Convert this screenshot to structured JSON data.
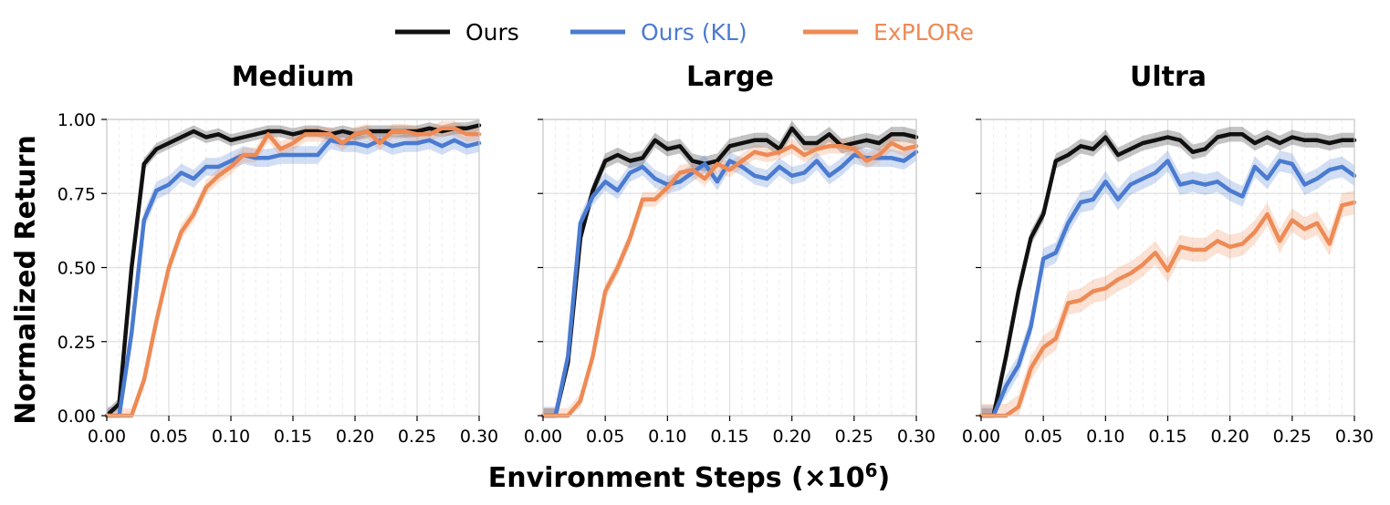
{
  "legend": [
    {
      "label": "Ours",
      "color": "#111111"
    },
    {
      "label": "Ours (KL)",
      "color": "#4a7bd1"
    },
    {
      "label": "ExPLORe",
      "color": "#ee8a55"
    }
  ],
  "figure": {
    "xlabel": "Environment Steps (×10",
    "xlabel_exp": "6",
    "xlabel_close": ")",
    "ylabel": "Normalized Return"
  },
  "chart_data": [
    {
      "type": "line",
      "title": "Medium",
      "xlim": [
        0,
        0.3
      ],
      "ylim": [
        0,
        1.0
      ],
      "xticks": [
        "0.00",
        "0.05",
        "0.10",
        "0.15",
        "0.20",
        "0.25",
        "0.30"
      ],
      "yticks": [
        "0.00",
        "0.25",
        "0.50",
        "0.75",
        "1.00"
      ],
      "grid": true,
      "x": [
        0,
        0.01,
        0.02,
        0.03,
        0.04,
        0.05,
        0.06,
        0.07,
        0.08,
        0.09,
        0.1,
        0.11,
        0.12,
        0.13,
        0.14,
        0.15,
        0.16,
        0.17,
        0.18,
        0.19,
        0.2,
        0.21,
        0.22,
        0.23,
        0.24,
        0.25,
        0.26,
        0.27,
        0.28,
        0.29,
        0.3
      ],
      "series": [
        {
          "name": "Ours",
          "color": "#111111",
          "band": 0.02,
          "values": [
            0.0,
            0.04,
            0.5,
            0.85,
            0.9,
            0.92,
            0.94,
            0.96,
            0.94,
            0.95,
            0.93,
            0.94,
            0.95,
            0.96,
            0.96,
            0.95,
            0.96,
            0.96,
            0.95,
            0.96,
            0.95,
            0.96,
            0.96,
            0.96,
            0.96,
            0.96,
            0.97,
            0.96,
            0.97,
            0.97,
            0.98
          ]
        },
        {
          "name": "Ours (KL)",
          "color": "#4a7bd1",
          "band": 0.03,
          "values": [
            0.0,
            0.0,
            0.28,
            0.66,
            0.76,
            0.78,
            0.82,
            0.8,
            0.84,
            0.84,
            0.86,
            0.88,
            0.87,
            0.87,
            0.88,
            0.88,
            0.88,
            0.88,
            0.93,
            0.92,
            0.92,
            0.91,
            0.93,
            0.91,
            0.92,
            0.92,
            0.93,
            0.91,
            0.93,
            0.91,
            0.92
          ]
        },
        {
          "name": "ExPLORe",
          "color": "#ee8a55",
          "band": 0.025,
          "values": [
            0.0,
            0.0,
            0.0,
            0.12,
            0.32,
            0.5,
            0.62,
            0.68,
            0.77,
            0.81,
            0.84,
            0.88,
            0.88,
            0.95,
            0.9,
            0.92,
            0.95,
            0.95,
            0.95,
            0.92,
            0.95,
            0.96,
            0.92,
            0.96,
            0.96,
            0.95,
            0.95,
            0.97,
            0.97,
            0.95,
            0.95
          ]
        }
      ]
    },
    {
      "type": "line",
      "title": "Large",
      "xlim": [
        0,
        0.3
      ],
      "ylim": [
        0,
        1.0
      ],
      "xticks": [
        "0.00",
        "0.05",
        "0.10",
        "0.15",
        "0.20",
        "0.25",
        "0.30"
      ],
      "yticks": [
        "0.00",
        "0.25",
        "0.50",
        "0.75",
        "1.00"
      ],
      "grid": true,
      "x": [
        0,
        0.01,
        0.02,
        0.03,
        0.04,
        0.05,
        0.06,
        0.07,
        0.08,
        0.09,
        0.1,
        0.11,
        0.12,
        0.13,
        0.14,
        0.15,
        0.16,
        0.17,
        0.18,
        0.19,
        0.2,
        0.21,
        0.22,
        0.23,
        0.24,
        0.25,
        0.26,
        0.27,
        0.28,
        0.29,
        0.3
      ],
      "series": [
        {
          "name": "Ours",
          "color": "#111111",
          "band": 0.025,
          "values": [
            0.0,
            0.0,
            0.18,
            0.6,
            0.76,
            0.86,
            0.88,
            0.86,
            0.87,
            0.93,
            0.9,
            0.91,
            0.86,
            0.85,
            0.86,
            0.91,
            0.92,
            0.93,
            0.93,
            0.9,
            0.97,
            0.92,
            0.92,
            0.95,
            0.91,
            0.92,
            0.93,
            0.92,
            0.95,
            0.95,
            0.94
          ]
        },
        {
          "name": "Ours (KL)",
          "color": "#4a7bd1",
          "band": 0.03,
          "values": [
            0.0,
            0.0,
            0.2,
            0.65,
            0.74,
            0.79,
            0.76,
            0.82,
            0.84,
            0.8,
            0.78,
            0.79,
            0.82,
            0.85,
            0.79,
            0.86,
            0.84,
            0.81,
            0.8,
            0.84,
            0.81,
            0.82,
            0.86,
            0.81,
            0.84,
            0.88,
            0.87,
            0.87,
            0.87,
            0.86,
            0.89
          ]
        },
        {
          "name": "ExPLORe",
          "color": "#ee8a55",
          "band": 0.025,
          "values": [
            0.0,
            0.0,
            0.0,
            0.05,
            0.2,
            0.42,
            0.5,
            0.6,
            0.73,
            0.73,
            0.77,
            0.82,
            0.83,
            0.8,
            0.85,
            0.83,
            0.86,
            0.89,
            0.88,
            0.89,
            0.91,
            0.88,
            0.9,
            0.91,
            0.91,
            0.9,
            0.86,
            0.88,
            0.92,
            0.9,
            0.91
          ]
        }
      ]
    },
    {
      "type": "line",
      "title": "Ultra",
      "xlim": [
        0,
        0.3
      ],
      "ylim": [
        0,
        1.0
      ],
      "xticks": [
        "0.00",
        "0.05",
        "0.10",
        "0.15",
        "0.20",
        "0.25",
        "0.30"
      ],
      "yticks": [
        "0.00",
        "0.25",
        "0.50",
        "0.75",
        "1.00"
      ],
      "grid": true,
      "x": [
        0,
        0.01,
        0.02,
        0.03,
        0.04,
        0.05,
        0.06,
        0.07,
        0.08,
        0.09,
        0.1,
        0.11,
        0.12,
        0.13,
        0.14,
        0.15,
        0.16,
        0.17,
        0.18,
        0.19,
        0.2,
        0.21,
        0.22,
        0.23,
        0.24,
        0.25,
        0.26,
        0.27,
        0.28,
        0.29,
        0.3
      ],
      "series": [
        {
          "name": "Ours",
          "color": "#111111",
          "band": 0.025,
          "values": [
            0.0,
            0.0,
            0.2,
            0.42,
            0.6,
            0.68,
            0.86,
            0.88,
            0.91,
            0.9,
            0.94,
            0.88,
            0.9,
            0.92,
            0.93,
            0.94,
            0.93,
            0.89,
            0.9,
            0.94,
            0.95,
            0.95,
            0.92,
            0.94,
            0.92,
            0.94,
            0.93,
            0.93,
            0.92,
            0.93,
            0.93
          ]
        },
        {
          "name": "Ours (KL)",
          "color": "#4a7bd1",
          "band": 0.035,
          "values": [
            0.0,
            0.0,
            0.1,
            0.17,
            0.3,
            0.53,
            0.55,
            0.65,
            0.72,
            0.73,
            0.79,
            0.73,
            0.78,
            0.8,
            0.82,
            0.86,
            0.78,
            0.79,
            0.78,
            0.79,
            0.76,
            0.74,
            0.84,
            0.8,
            0.86,
            0.85,
            0.78,
            0.8,
            0.83,
            0.84,
            0.81
          ]
        },
        {
          "name": "ExPLORe",
          "color": "#ee8a55",
          "band": 0.04,
          "values": [
            0.0,
            0.0,
            0.0,
            0.03,
            0.16,
            0.23,
            0.26,
            0.38,
            0.39,
            0.42,
            0.43,
            0.46,
            0.48,
            0.51,
            0.55,
            0.49,
            0.57,
            0.56,
            0.56,
            0.59,
            0.57,
            0.58,
            0.62,
            0.68,
            0.59,
            0.66,
            0.63,
            0.65,
            0.58,
            0.71,
            0.72
          ]
        }
      ]
    }
  ]
}
